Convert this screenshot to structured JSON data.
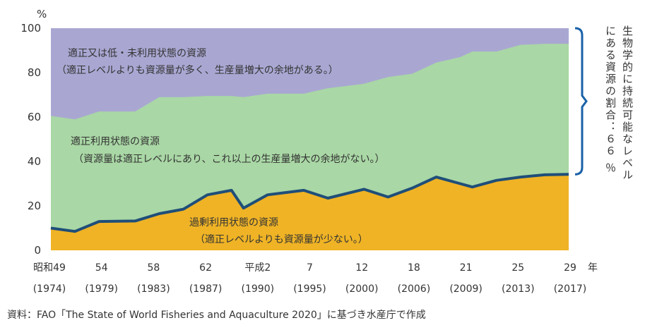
{
  "chart_data": {
    "type": "area",
    "title": "",
    "ylabel": "%",
    "ylim": [
      0,
      100
    ],
    "yticks": [
      0,
      20,
      40,
      60,
      80,
      100
    ],
    "year_label": "年",
    "years": [
      1974,
      1976,
      1978,
      1981,
      1983,
      1985,
      1987,
      1989,
      1990,
      1992,
      1995,
      1997,
      2000,
      2002,
      2004,
      2006,
      2008,
      2009,
      2011,
      2013,
      2015,
      2017
    ],
    "overfished_top": [
      10,
      8.5,
      13,
      13.2,
      16.5,
      18.5,
      25,
      27,
      19,
      25,
      27,
      23.5,
      27.5,
      24,
      28,
      33,
      30,
      28.5,
      31.5,
      33,
      34,
      34.2
    ],
    "sustainable_top": [
      60.5,
      59,
      62.5,
      62.5,
      69,
      69,
      69.5,
      69.5,
      69,
      70.5,
      70.5,
      73,
      75,
      78,
      79.5,
      84.5,
      87,
      89.5,
      89.5,
      92.5,
      93,
      93
    ],
    "series": [
      {
        "name": "過剰利用状態の資源",
        "note": "（適正レベルよりも資源量が少ない。）",
        "color": "#efb325"
      },
      {
        "name": "適正利用状態の資源",
        "note": "（資源量は適正レベルにあり、これ以上の生産量増大の余地がない。）",
        "color": "#a9d7a5"
      },
      {
        "name": "適正又は低・未利用状態の資源",
        "note": "（適正レベルよりも資源量が多く、生産量増大の余地がある。）",
        "color": "#a9a7d2"
      }
    ],
    "line_color": "#1f4e79",
    "bracket_color": "#1a62a8",
    "x_labels": [
      {
        "top": "昭和49",
        "bottom": "(1974)"
      },
      {
        "top": "54",
        "bottom": "(1979)"
      },
      {
        "top": "58",
        "bottom": "(1983)"
      },
      {
        "top": "62",
        "bottom": "(1987)"
      },
      {
        "top": "平成2",
        "bottom": "(1990)"
      },
      {
        "top": "7",
        "bottom": "(1995)"
      },
      {
        "top": "12",
        "bottom": "(2000)"
      },
      {
        "top": "18",
        "bottom": "(2006)"
      },
      {
        "top": "21",
        "bottom": "(2009)"
      },
      {
        "top": "25",
        "bottom": "(2013)"
      },
      {
        "top": "29",
        "bottom": "(2017)"
      }
    ],
    "bracket_text": "生物学的に持続可能なレベルにある資源の割合：６６ ％",
    "bracket_value": 66
  },
  "source_text": "資料：FAO「The State of World Fisheries and Aquaculture 2020」に基づき水産庁で作成"
}
